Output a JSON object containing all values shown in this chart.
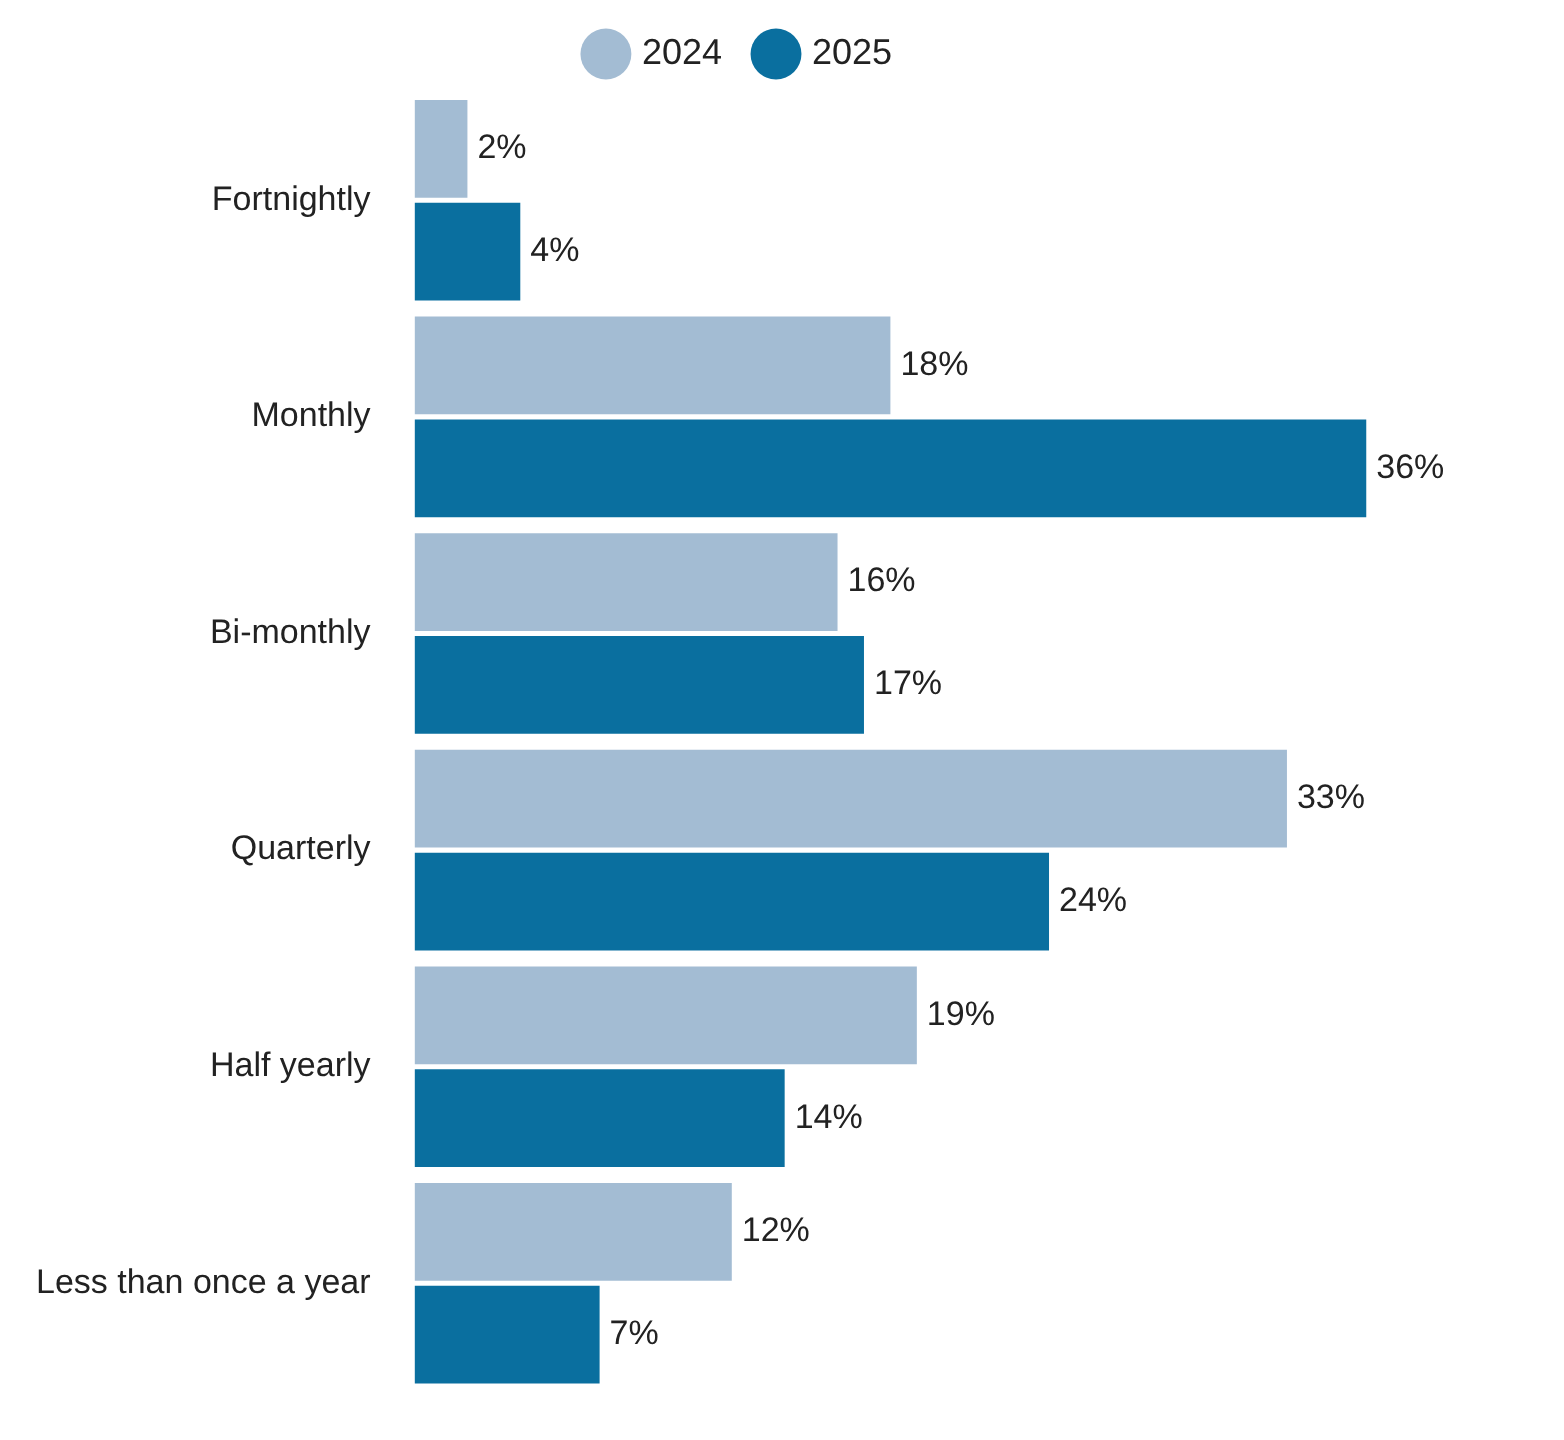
{
  "chart_data": {
    "type": "bar",
    "orientation": "horizontal",
    "categories": [
      "Fortnightly",
      "Monthly",
      "Bi-monthly",
      "Quarterly",
      "Half yearly",
      "Less than once a year"
    ],
    "series": [
      {
        "name": "2024",
        "color": "#a3bcd3",
        "values": [
          2,
          18,
          16,
          33,
          19,
          12
        ],
        "value_labels": [
          "2%",
          "18%",
          "16%",
          "33%",
          "19%",
          "12%"
        ]
      },
      {
        "name": "2025",
        "color": "#0a6f9f",
        "values": [
          4,
          36,
          17,
          24,
          14,
          7
        ],
        "value_labels": [
          "4%",
          "36%",
          "17%",
          "24%",
          "14%",
          "7%"
        ]
      }
    ],
    "legend": "top"
  }
}
